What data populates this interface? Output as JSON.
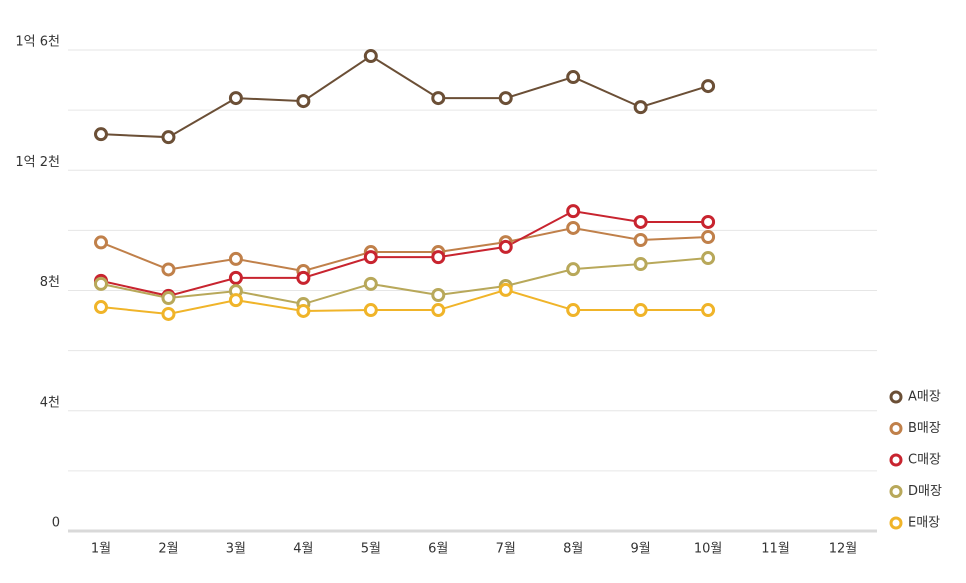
{
  "chart_data": {
    "type": "line",
    "categories": [
      "1월",
      "2월",
      "3월",
      "4월",
      "5월",
      "6월",
      "7월",
      "8월",
      "9월",
      "10월",
      "11월",
      "12월"
    ],
    "series": [
      {
        "name": "A매장",
        "color": "#6b4f36",
        "values": [
          132000000,
          131000000,
          144000000,
          143000000,
          158000000,
          144000000,
          144000000,
          151000000,
          141000000,
          148000000,
          null,
          null
        ]
      },
      {
        "name": "B매장",
        "color": "#c0804a",
        "values": [
          96000000,
          87000000,
          90500000,
          86500000,
          92800000,
          92800000,
          96100000,
          100800000,
          96800000,
          97800000,
          null,
          null
        ]
      },
      {
        "name": "C매장",
        "color": "#c8242f",
        "values": [
          83200000,
          78200000,
          84200000,
          84200000,
          91100000,
          91100000,
          94500000,
          106400000,
          102800000,
          102800000,
          null,
          null
        ]
      },
      {
        "name": "D매장",
        "color": "#b8a85a",
        "values": [
          82200000,
          77500000,
          79800000,
          75500000,
          82200000,
          78500000,
          81500000,
          87100000,
          88800000,
          90800000,
          null,
          null
        ]
      },
      {
        "name": "E매장",
        "color": "#f0b429",
        "values": [
          74500000,
          72200000,
          76800000,
          73200000,
          73500000,
          73500000,
          80200000,
          73500000,
          73500000,
          73500000,
          null,
          null
        ]
      }
    ],
    "ylim": [
      0,
      160000000
    ],
    "yticks": [
      0,
      {
        "value": 40000000,
        "label": "4천"
      },
      {
        "value": 80000000,
        "label": "8천"
      },
      {
        "value": 120000000,
        "label": "1억 2천"
      },
      {
        "value": 160000000,
        "label": "1억 6천"
      }
    ],
    "minor_yticks": [
      20000000,
      60000000,
      100000000,
      140000000
    ],
    "grid": true,
    "legend": "right"
  }
}
